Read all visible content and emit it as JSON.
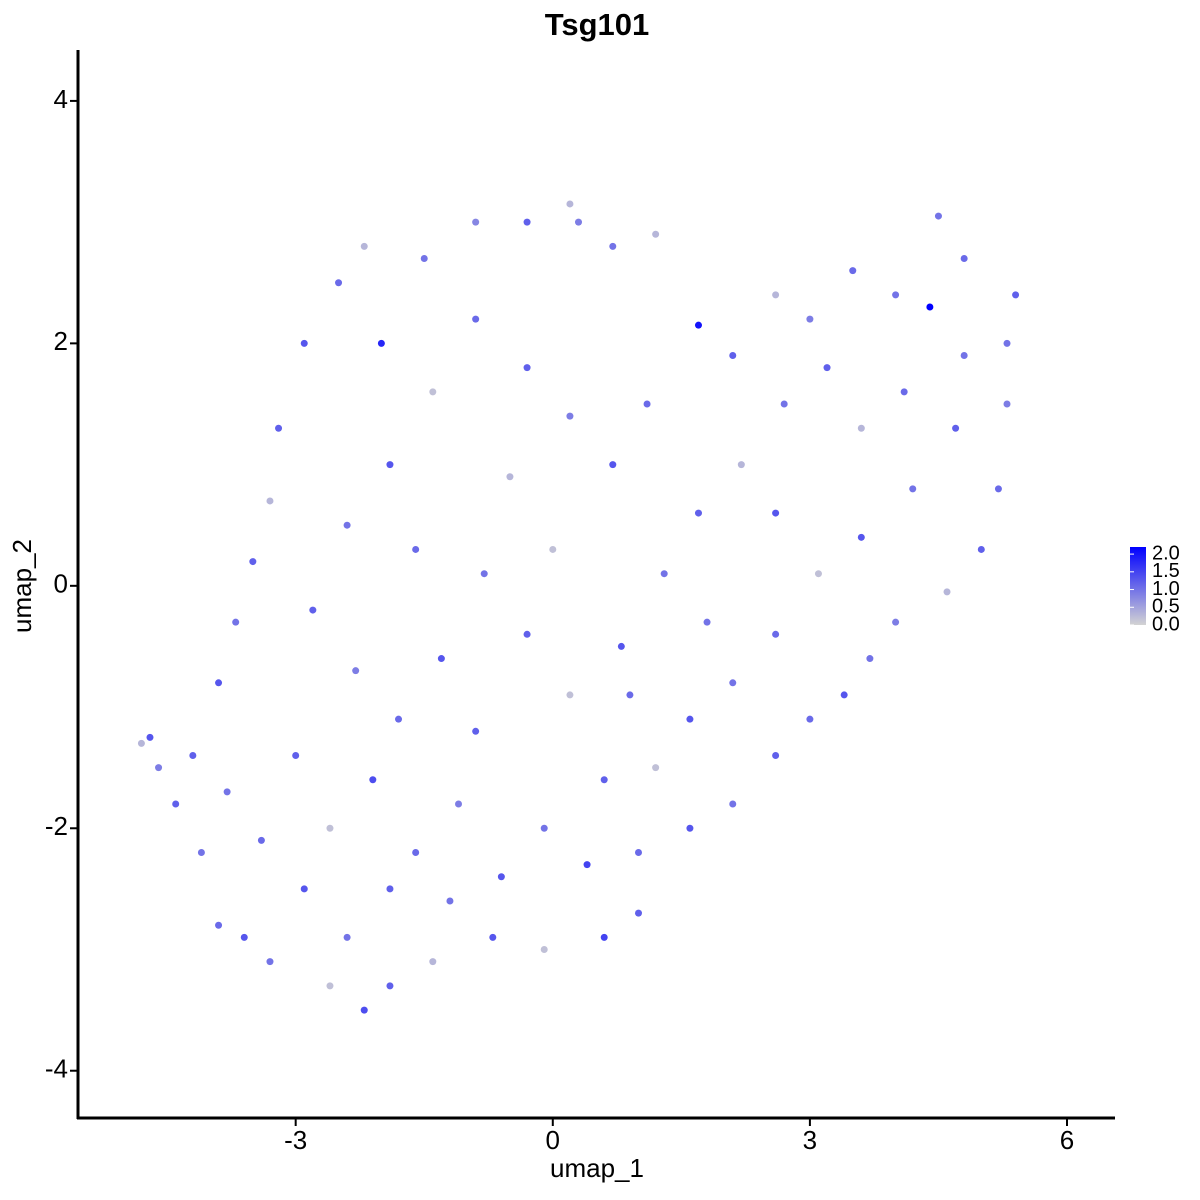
{
  "chart_data": {
    "type": "scatter",
    "title": "Tsg101",
    "x_label": "umap_1",
    "y_label": "umap_2",
    "xlim": [
      -5.54,
      6.56
    ],
    "ylim": [
      -4.39,
      4.42
    ],
    "xticks": [
      -3,
      0,
      3,
      6
    ],
    "yticks": [
      -4,
      -2,
      0,
      2,
      4
    ],
    "low_color": "#d3d3d3",
    "high_color": "#0000ff",
    "clim": [
      0,
      2.2
    ],
    "cticks": [
      {
        "value": 0,
        "label": "0.0"
      },
      {
        "value": 0.5,
        "label": "0.5"
      },
      {
        "value": 1,
        "label": "1.0"
      },
      {
        "value": 1.5,
        "label": "1.5"
      },
      {
        "value": 2,
        "label": "2.0"
      }
    ],
    "x": [
      -4.7,
      -4.8,
      -4.6,
      -4.4,
      -4.1,
      -3.9,
      -3.6,
      -3.3,
      -2.6,
      -2.2,
      -1.9,
      -1.4,
      -0.7,
      -0.1,
      0.6,
      1.0,
      1.0,
      1.6,
      2.1,
      2.6,
      3.0,
      3.4,
      3.7,
      4.0,
      4.6,
      5.0,
      5.2,
      5.3,
      5.3,
      5.4,
      4.8,
      4.5,
      4.4,
      4.0,
      3.5,
      3.0,
      2.6,
      2.1,
      1.7,
      1.2,
      0.7,
      0.3,
      0.2,
      -0.3,
      -0.9,
      -1.5,
      -2.2,
      -2.5,
      -2.9,
      -3.2,
      -3.3,
      -3.5,
      -3.7,
      -3.9,
      -4.2,
      -3.8,
      -3.4,
      -2.9,
      -2.4,
      -1.9,
      -2.6,
      -2.1,
      -1.6,
      -1.1,
      -0.6,
      -0.1,
      0.4,
      0.6,
      1.2,
      1.6,
      2.1,
      2.6,
      3.1,
      3.6,
      4.2,
      4.7,
      4.1,
      3.6,
      3.2,
      2.7,
      2.2,
      1.7,
      1.3,
      0.8,
      0.2,
      -0.3,
      -0.8,
      -1.3,
      -1.8,
      -2.3,
      -2.8,
      -2.4,
      -1.9,
      -1.4,
      -0.9,
      -0.3,
      0.2,
      0.7,
      -0.5,
      1.1,
      -1.6,
      -0.9,
      0.0,
      1.8,
      2.6,
      4.8,
      -3.0,
      -1.2,
      0.9,
      -2.0
    ],
    "y": [
      -1.25,
      -1.3,
      -1.5,
      -1.8,
      -2.2,
      -2.8,
      -2.9,
      -3.1,
      -3.3,
      -3.5,
      -3.3,
      -3.1,
      -2.9,
      -3.0,
      -2.9,
      -2.7,
      -2.2,
      -2.0,
      -1.8,
      -1.4,
      -1.1,
      -0.9,
      -0.6,
      -0.3,
      -0.05,
      0.3,
      0.8,
      1.5,
      2.0,
      2.4,
      2.7,
      3.05,
      2.3,
      2.4,
      2.6,
      2.2,
      2.4,
      1.9,
      2.15,
      2.9,
      2.8,
      3.0,
      3.15,
      3.0,
      3.0,
      2.7,
      2.8,
      2.5,
      2.0,
      1.3,
      0.7,
      0.2,
      -0.3,
      -0.8,
      -1.4,
      -1.7,
      -2.1,
      -2.5,
      -2.9,
      -2.5,
      -2.0,
      -1.6,
      -2.2,
      -1.8,
      -2.4,
      -2.0,
      -2.3,
      -1.6,
      -1.5,
      -1.1,
      -0.8,
      -0.4,
      0.1,
      0.4,
      0.8,
      1.3,
      1.6,
      1.3,
      1.8,
      1.5,
      1.0,
      0.6,
      0.1,
      -0.5,
      -0.9,
      -0.4,
      0.1,
      -0.6,
      -1.1,
      -0.7,
      -0.2,
      0.5,
      1.0,
      1.6,
      2.2,
      1.8,
      1.4,
      1.0,
      0.9,
      1.5,
      0.3,
      -1.2,
      0.3,
      -0.3,
      0.6,
      1.9,
      -1.4,
      -2.6,
      -0.9,
      2.0
    ],
    "values": [
      1.3,
      0.3,
      0.9,
      1.2,
      1.0,
      1.1,
      1.3,
      1.0,
      0.2,
      1.4,
      1.2,
      0.3,
      1.3,
      0.2,
      1.5,
      1.2,
      1.1,
      1.3,
      1.0,
      1.2,
      1.1,
      1.3,
      1.0,
      0.9,
      0.3,
      1.2,
      1.1,
      0.9,
      1.0,
      1.2,
      1.1,
      1.0,
      2.2,
      1.0,
      1.1,
      0.9,
      0.3,
      1.2,
      2.0,
      0.3,
      1.0,
      0.9,
      0.3,
      1.2,
      0.8,
      1.0,
      0.3,
      1.1,
      1.3,
      1.2,
      0.3,
      1.2,
      1.0,
      1.3,
      1.2,
      1.0,
      1.1,
      1.3,
      1.0,
      1.2,
      0.2,
      1.4,
      1.1,
      0.9,
      1.3,
      1.0,
      1.5,
      1.2,
      0.2,
      1.3,
      1.0,
      1.1,
      0.2,
      1.3,
      1.0,
      1.2,
      1.1,
      0.3,
      1.2,
      1.0,
      0.3,
      1.2,
      1.0,
      1.3,
      0.2,
      1.2,
      1.0,
      1.3,
      1.1,
      0.9,
      1.2,
      1.0,
      1.3,
      0.2,
      1.1,
      1.2,
      0.9,
      1.3,
      0.3,
      1.1,
      1.1,
      1.2,
      0.2,
      1.0,
      1.3,
      1.0,
      1.2,
      1.0,
      1.1,
      1.8
    ]
  }
}
